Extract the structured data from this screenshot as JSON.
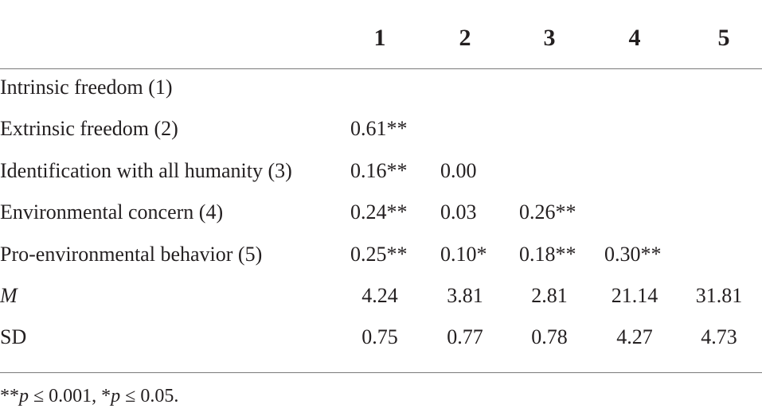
{
  "table": {
    "columns": [
      "1",
      "2",
      "3",
      "4",
      "5"
    ],
    "rows": [
      {
        "label": "Intrinsic freedom (1)",
        "italic": false,
        "cells": [
          "",
          "",
          "",
          "",
          ""
        ]
      },
      {
        "label": "Extrinsic freedom (2)",
        "italic": false,
        "cells": [
          "0.61**",
          "",
          "",
          "",
          ""
        ]
      },
      {
        "label": "Identification with all humanity (3)",
        "italic": false,
        "cells": [
          "0.16**",
          "0.00",
          "",
          "",
          ""
        ]
      },
      {
        "label": "Environmental concern (4)",
        "italic": false,
        "cells": [
          "0.24**",
          "0.03",
          "0.26**",
          "",
          ""
        ]
      },
      {
        "label": "Pro-environmental behavior (5)",
        "italic": false,
        "cells": [
          "0.25**",
          "0.10*",
          "0.18**",
          "0.30**",
          ""
        ]
      },
      {
        "label": "M",
        "italic": true,
        "cells": [
          "4.24",
          "3.81",
          "2.81",
          "21.14",
          "31.81"
        ]
      },
      {
        "label": "SD",
        "italic": false,
        "cells": [
          "0.75",
          "0.77",
          "0.78",
          "4.27",
          "4.73"
        ]
      }
    ]
  },
  "footnote": {
    "part1_stars": "**",
    "part1_p": "p",
    "part1_rest": " ≤ 0.001, ",
    "part2_stars": "*",
    "part2_p": "p",
    "part2_rest": " ≤ 0.05."
  }
}
